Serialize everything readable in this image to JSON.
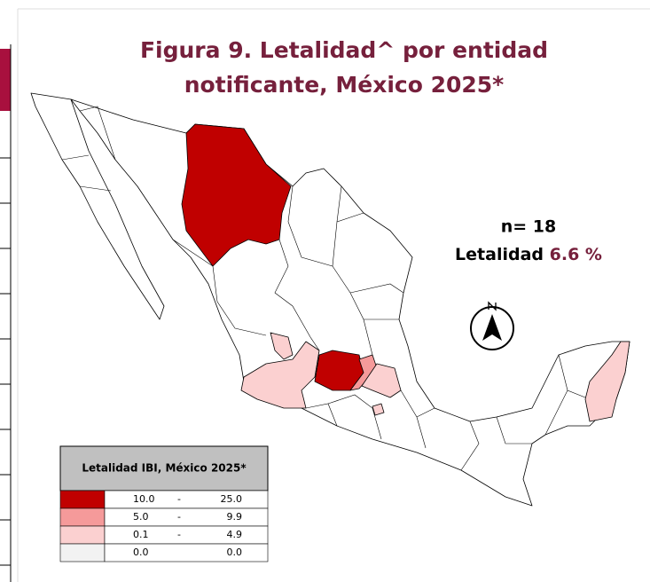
{
  "title": [
    "Figura 9. Letalidad^ por entidad",
    "notificante, México 2025*"
  ],
  "summary": {
    "n": "n= 18",
    "label": "Letalidad",
    "value": "6.6 %"
  },
  "legend": {
    "title": "Letalidad IBI, México 2025*",
    "rows": [
      {
        "from": "10.0",
        "sep": "-",
        "to": "25.0",
        "color": "#c00000"
      },
      {
        "from": "5.0",
        "sep": "-",
        "to": "9.9",
        "color": "#f59a9a"
      },
      {
        "from": "0.1",
        "sep": "-",
        "to": "4.9",
        "color": "#fbd0d0"
      },
      {
        "from": "0.0",
        "to": "0.0",
        "color": "#f2f2f2"
      }
    ]
  }
}
